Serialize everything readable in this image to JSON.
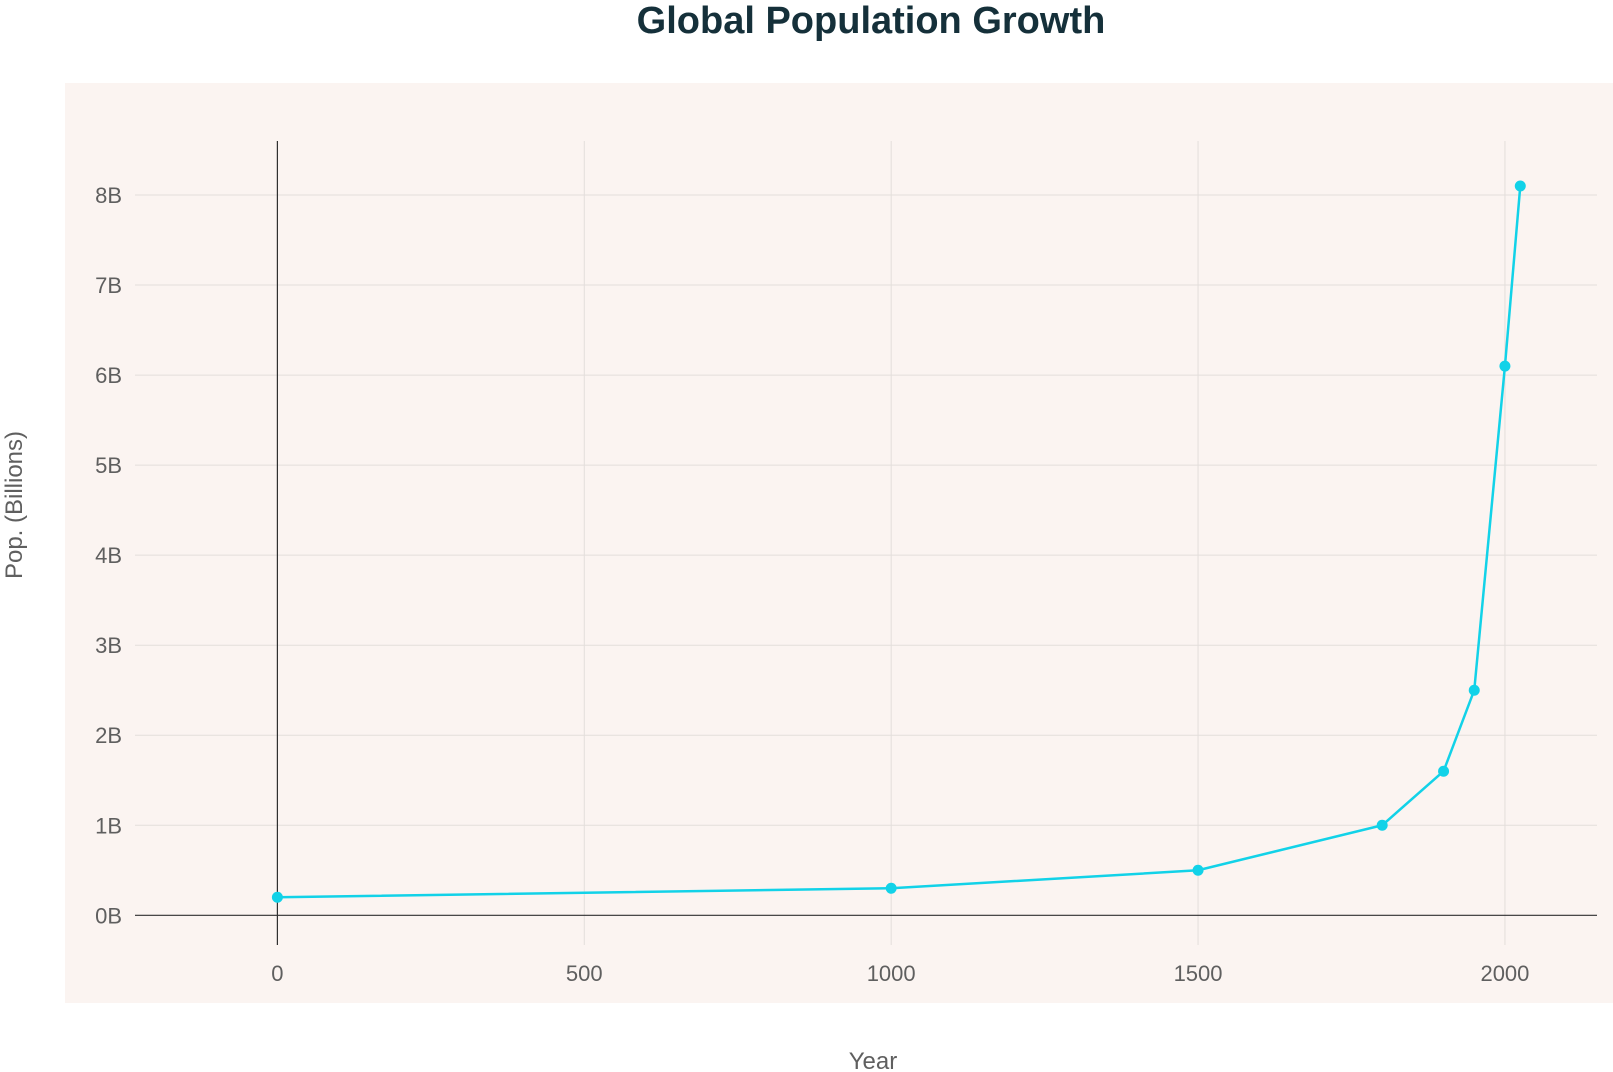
{
  "chart_data": {
    "type": "line",
    "title": "Global Population Growth",
    "xlabel": "Year",
    "ylabel": "Pop. (Billions)",
    "x_ticks": [
      0,
      500,
      1000,
      1500,
      2000
    ],
    "x_tick_labels": [
      "0",
      "500",
      "1000",
      "1500",
      "2000"
    ],
    "y_ticks": [
      0,
      1,
      2,
      3,
      4,
      5,
      6,
      7,
      8
    ],
    "y_tick_labels": [
      "0B",
      "1B",
      "2B",
      "3B",
      "4B",
      "5B",
      "6B",
      "7B",
      "8B"
    ],
    "xlim": [
      -232,
      2150
    ],
    "ylim": [
      -0.33,
      8.6
    ],
    "grid": true,
    "legend": "none",
    "series": [
      {
        "x": [
          0,
          1000,
          1500,
          1800,
          1900,
          1950,
          2000,
          2025
        ],
        "y": [
          0.2,
          0.3,
          0.5,
          1.0,
          1.6,
          2.5,
          6.1,
          8.1
        ],
        "color": "#12d2e8"
      }
    ],
    "colors": {
      "plot_background": "#fbf4f1",
      "grid": "#e3dedb",
      "axis_line": "#2f2f2f",
      "title": "#15303a",
      "label": "#5f5f5f"
    }
  }
}
